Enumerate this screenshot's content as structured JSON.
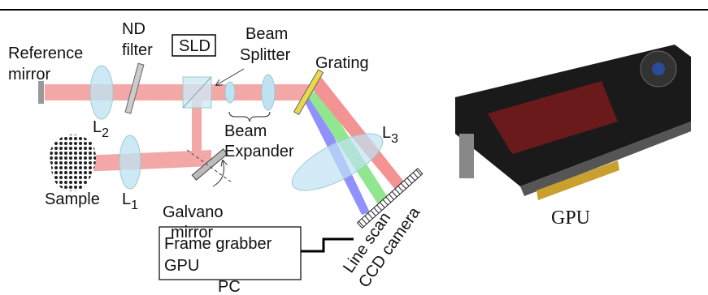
{
  "labels": {
    "reference_mirror": [
      "Reference",
      "mirror"
    ],
    "nd_filter": [
      "ND",
      "filter"
    ],
    "sld": "SLD",
    "beam_splitter": [
      "Beam",
      "Splitter"
    ],
    "grating": "Grating",
    "beam_expander": [
      "Beam",
      "Expander"
    ],
    "l2": {
      "main": "L",
      "sub": "2"
    },
    "l1": {
      "main": "L",
      "sub": "1"
    },
    "l3": {
      "main": "L",
      "sub": "3"
    },
    "sample": "Sample",
    "galvano_mirror": [
      "Galvano",
      "mirror"
    ],
    "pc": {
      "lines": [
        "Frame grabber",
        "GPU"
      ],
      "title": "PC"
    },
    "camera": [
      "Line scan",
      "CCD camera"
    ],
    "gpu_caption": "GPU"
  }
}
